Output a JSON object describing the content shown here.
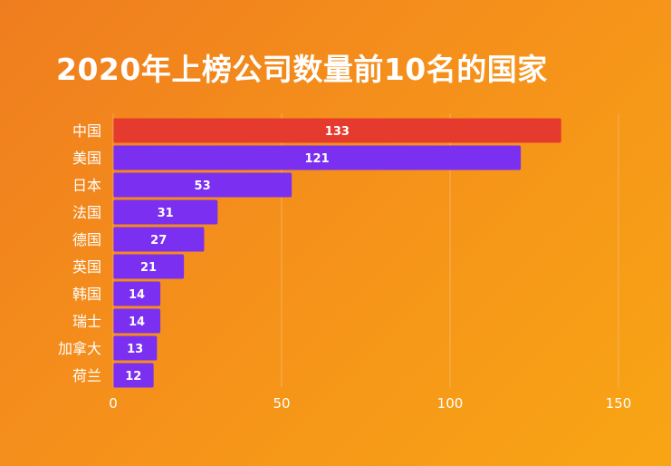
{
  "title": "2020年上榜公司数量前10名的国家",
  "chart_data": {
    "type": "bar",
    "orientation": "horizontal",
    "title": "2020年上榜公司数量前10名的国家",
    "categories": [
      "中国",
      "美国",
      "日本",
      "法国",
      "德国",
      "英国",
      "韩国",
      "瑞士",
      "加拿大",
      "荷兰"
    ],
    "values": [
      133,
      121,
      53,
      31,
      27,
      21,
      14,
      14,
      13,
      12
    ],
    "xlim": [
      0,
      150
    ],
    "xticks": [
      0,
      50,
      100,
      150
    ],
    "grid": "vertical",
    "legend": "none",
    "data_labels": "inside-center"
  },
  "colors": {
    "highlight_bar": "#e53b2f",
    "bar": "#7b2ff0",
    "label_text": "#ffffff",
    "grid": "#f7b867"
  }
}
